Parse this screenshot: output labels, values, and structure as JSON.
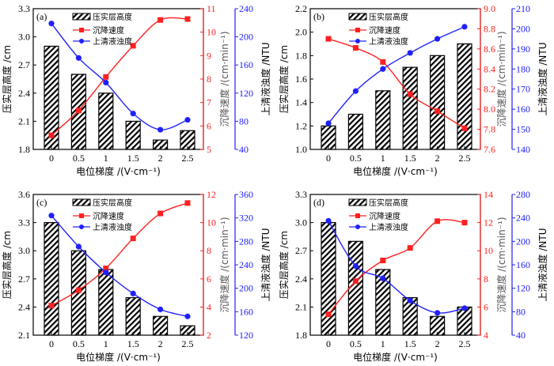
{
  "colors": {
    "bar": "#000000",
    "settling": "#ff2020",
    "turbidity": "#2020ff"
  },
  "legend": [
    "压实层高度",
    "沉降速度",
    "上清液浊度"
  ],
  "chart_data": [
    {
      "type": "bar+line",
      "panel_label": "(a)",
      "xlabel": "电位梯度 /(V·cm⁻¹)",
      "ylabel": "压实层高度 /cm",
      "y2label": "沉降速度 /(cm·min⁻¹)",
      "y3label": "上清液浊度 /NTU",
      "categories": [
        "0",
        "0.5",
        "1",
        "1.5",
        "2",
        "2.5"
      ],
      "ylim": [
        1.8,
        3.3
      ],
      "yticks": [
        "1.8",
        "2.1",
        "2.4",
        "2.7",
        "3.0",
        "3.3"
      ],
      "y2lim": [
        5,
        11
      ],
      "y2ticks": [
        "5",
        "6",
        "7",
        "8",
        "9",
        "10",
        "11"
      ],
      "y3lim": [
        40,
        240
      ],
      "y3ticks": [
        "40",
        "80",
        "120",
        "160",
        "200",
        "240"
      ],
      "series": [
        {
          "name": "压实层高度",
          "axis": "left",
          "kind": "bar",
          "values": [
            2.9,
            2.6,
            2.4,
            2.1,
            1.9,
            2.0
          ]
        },
        {
          "name": "沉降速度",
          "axis": "right1",
          "kind": "line",
          "values": [
            5.6,
            6.66,
            8.09,
            9.42,
            10.52,
            10.56
          ]
        },
        {
          "name": "上清液浊度",
          "axis": "right2",
          "kind": "line",
          "values": [
            219,
            170,
            135,
            91,
            68,
            82
          ]
        }
      ]
    },
    {
      "type": "bar+line",
      "panel_label": "(b)",
      "xlabel": "电位梯度 /(V·cm⁻¹)",
      "ylabel": "压实层高度 /cm",
      "y2label": "沉降速度 /(cm·min⁻¹)",
      "y3label": "上清液浊度 /NTU",
      "categories": [
        "0",
        "0.5",
        "1",
        "1.5",
        "2",
        "2.5"
      ],
      "ylim": [
        1.0,
        2.2
      ],
      "yticks": [
        "1.0",
        "1.2",
        "1.4",
        "1.6",
        "1.8",
        "2.0",
        "2.2"
      ],
      "y2lim": [
        7.6,
        9.0
      ],
      "y2ticks": [
        "7.6",
        "7.8",
        "8.0",
        "8.2",
        "8.4",
        "8.6",
        "8.8",
        "9.0"
      ],
      "y3lim": [
        140,
        210
      ],
      "y3ticks": [
        "140",
        "150",
        "160",
        "170",
        "180",
        "190",
        "200",
        "210"
      ],
      "series": [
        {
          "name": "压实层高度",
          "axis": "left",
          "kind": "bar",
          "values": [
            1.2,
            1.3,
            1.5,
            1.7,
            1.8,
            1.9
          ]
        },
        {
          "name": "沉降速度",
          "axis": "right1",
          "kind": "line",
          "values": [
            8.7,
            8.61,
            8.47,
            8.15,
            7.98,
            7.81
          ]
        },
        {
          "name": "上清液浊度",
          "axis": "right2",
          "kind": "line",
          "values": [
            153,
            169,
            180,
            188,
            195,
            201
          ]
        }
      ]
    },
    {
      "type": "bar+line",
      "panel_label": "(c)",
      "xlabel": "电位梯度 /(V·cm⁻¹)",
      "ylabel": "压实层高度 /cm",
      "y2label": "沉降速度 /(cm·min⁻¹)",
      "y3label": "上清液浊度 /NTU",
      "categories": [
        "0",
        "0.5",
        "1",
        "1.5",
        "2",
        "2.5"
      ],
      "ylim": [
        2.1,
        3.6
      ],
      "yticks": [
        "2.1",
        "2.4",
        "2.7",
        "3.0",
        "3.3",
        "3.6"
      ],
      "y2lim": [
        2,
        12
      ],
      "y2ticks": [
        "2",
        "4",
        "6",
        "8",
        "10",
        "12"
      ],
      "y3lim": [
        120,
        360
      ],
      "y3ticks": [
        "120",
        "160",
        "200",
        "240",
        "280",
        "320",
        "360"
      ],
      "series": [
        {
          "name": "压实层高度",
          "axis": "left",
          "kind": "bar",
          "values": [
            3.3,
            3.0,
            2.8,
            2.5,
            2.3,
            2.2
          ]
        },
        {
          "name": "沉降速度",
          "axis": "right1",
          "kind": "line",
          "values": [
            4.1,
            5.2,
            6.75,
            8.88,
            10.65,
            11.39
          ]
        },
        {
          "name": "上清液浊度",
          "axis": "right2",
          "kind": "line",
          "values": [
            324,
            271,
            227,
            191,
            164,
            152
          ]
        }
      ]
    },
    {
      "type": "bar+line",
      "panel_label": "(d)",
      "xlabel": "电位梯度 /(V·cm⁻¹)",
      "ylabel": "压实层高度 /cm",
      "y2label": "沉降速度 /(cm·min⁻¹)",
      "y3label": "上清液浊度 /NTU",
      "categories": [
        "0",
        "0.5",
        "1",
        "1.5",
        "2",
        "2.5"
      ],
      "ylim": [
        1.8,
        3.3
      ],
      "yticks": [
        "1.8",
        "2.1",
        "2.4",
        "2.7",
        "3.0",
        "3.3"
      ],
      "y2lim": [
        4,
        14
      ],
      "y2ticks": [
        "4",
        "6",
        "8",
        "10",
        "12",
        "14"
      ],
      "y3lim": [
        40,
        280
      ],
      "y3ticks": [
        "40",
        "80",
        "120",
        "160",
        "200",
        "240",
        "280"
      ],
      "series": [
        {
          "name": "压实层高度",
          "axis": "left",
          "kind": "bar",
          "values": [
            3.0,
            2.8,
            2.5,
            2.2,
            2.0,
            2.1
          ]
        },
        {
          "name": "沉降速度",
          "axis": "right1",
          "kind": "line",
          "values": [
            5.48,
            7.84,
            9.31,
            10.2,
            12.1,
            12.0
          ]
        },
        {
          "name": "上清液浊度",
          "axis": "right2",
          "kind": "line",
          "values": [
            235,
            158,
            137,
            99,
            78,
            86
          ]
        }
      ]
    }
  ]
}
